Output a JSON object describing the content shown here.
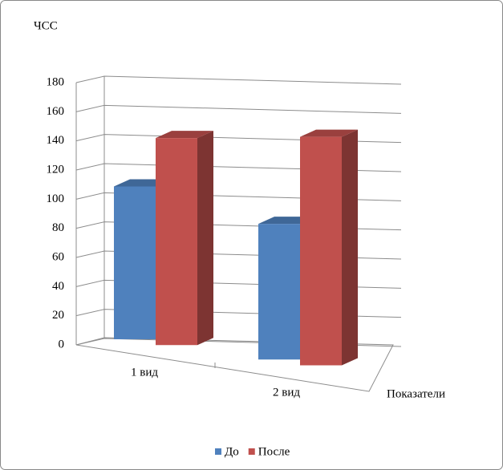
{
  "chart_data": {
    "type": "bar3d",
    "y_label": "ЧСС",
    "x_label": "Показатели",
    "categories": [
      "1 вид",
      "2 вид"
    ],
    "series": [
      {
        "name": "До",
        "color": "#4f81bd",
        "values": [
          107,
          95
        ]
      },
      {
        "name": "После",
        "color": "#c0504d",
        "values": [
          145,
          160
        ]
      }
    ],
    "ylim": [
      0,
      180
    ],
    "yticks": [
      0,
      20,
      40,
      60,
      80,
      100,
      120,
      140,
      160,
      180
    ],
    "grid": true,
    "legend": "bottom"
  }
}
